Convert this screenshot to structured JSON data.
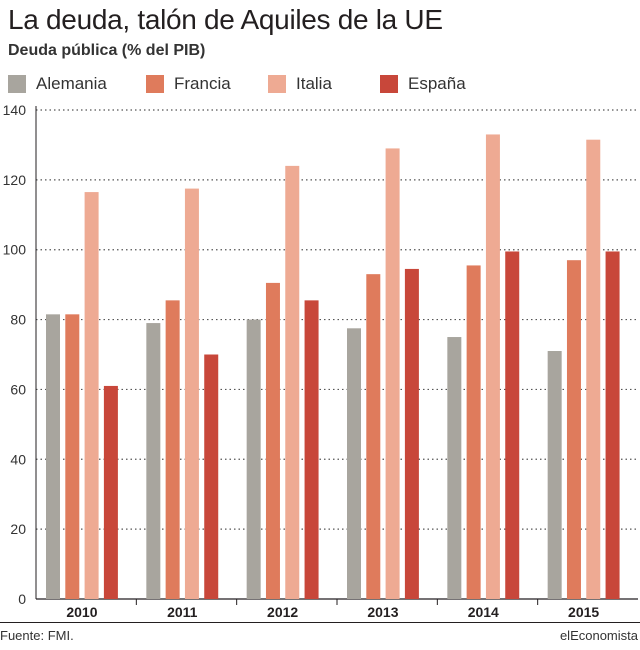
{
  "header": {
    "title": "La deuda, talón de Aquiles de la UE",
    "subtitle": "Deuda pública (% del PIB)"
  },
  "footer": {
    "source": "Fuente: FMI.",
    "brand": "elEconomista"
  },
  "colors": {
    "Alemania": "#a8a59e",
    "Francia": "#df7b5c",
    "Italia": "#eeaa93",
    "España": "#c8473a",
    "grid": "#555555",
    "axis": "#231f20"
  },
  "chart_data": {
    "type": "bar",
    "title": "La deuda, talón de Aquiles de la UE",
    "subtitle": "Deuda pública (% del PIB)",
    "categories": [
      "2010",
      "2011",
      "2012",
      "2013",
      "2014",
      "2015"
    ],
    "series": [
      {
        "name": "Alemania",
        "values": [
          81.5,
          79.0,
          80.0,
          77.5,
          75.0,
          71.0
        ]
      },
      {
        "name": "Francia",
        "values": [
          81.5,
          85.5,
          90.5,
          93.0,
          95.5,
          97.0
        ]
      },
      {
        "name": "Italia",
        "values": [
          116.5,
          117.5,
          124.0,
          129.0,
          133.0,
          131.5
        ]
      },
      {
        "name": "España",
        "values": [
          61.0,
          70.0,
          85.5,
          94.5,
          99.5,
          99.5
        ]
      }
    ],
    "ylim": [
      0,
      140
    ],
    "yticks": [
      0,
      20,
      40,
      60,
      80,
      100,
      120,
      140
    ],
    "grid": "dotted-horizontal",
    "legend_position": "top"
  }
}
